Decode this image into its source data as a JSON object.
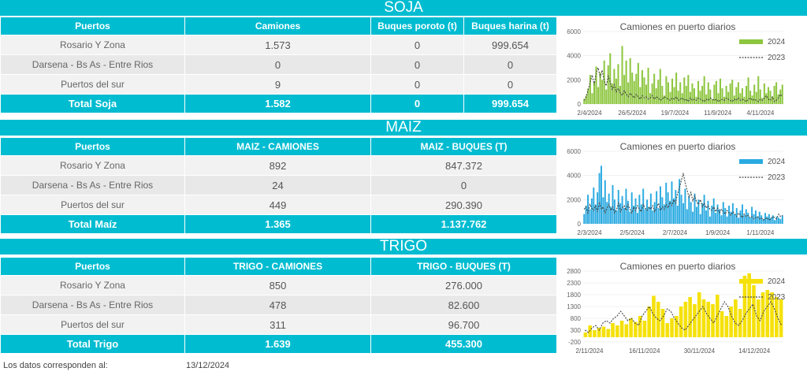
{
  "soja": {
    "title": "SOJA",
    "headers": [
      "Puertos",
      "Camiones",
      "Buques poroto (t)",
      "Buques harina (t)"
    ],
    "rows": [
      [
        "Rosario Y Zona",
        "1.573",
        "0",
        "999.654"
      ],
      [
        "Darsena - Bs As - Entre Rios",
        "0",
        "0",
        "0"
      ],
      [
        "Puertos del sur",
        "9",
        "0",
        "0"
      ]
    ],
    "total": [
      "Total Soja",
      "1.582",
      "0",
      "999.654"
    ]
  },
  "maiz": {
    "title": "MAIZ",
    "headers": [
      "Puertos",
      "MAIZ - CAMIONES",
      "MAIZ - BUQUES (T)"
    ],
    "rows": [
      [
        "Rosario Y Zona",
        "892",
        "847.372"
      ],
      [
        "Darsena - Bs As - Entre Rios",
        "24",
        "0"
      ],
      [
        "Puertos del sur",
        "449",
        "290.390"
      ]
    ],
    "total": [
      "Total Maíz",
      "1.365",
      "1.137.762"
    ]
  },
  "trigo": {
    "title": "TRIGO",
    "headers": [
      "Puertos",
      "TRIGO - CAMIONES",
      "TRIGO - BUQUES (T)"
    ],
    "rows": [
      [
        "Rosario Y Zona",
        "850",
        "276.000"
      ],
      [
        "Darsena - Bs As - Entre Rios",
        "478",
        "82.600"
      ],
      [
        "Puertos del sur",
        "311",
        "96.700"
      ]
    ],
    "total": [
      "Total Trigo",
      "1.639",
      "455.300"
    ]
  },
  "footer": {
    "label": "Los datos corresponden al:",
    "date": "13/12/2024"
  },
  "colors": {
    "band": "#00bcd1",
    "soja_bar": "#8dc63f",
    "maiz_bar": "#29aae1",
    "trigo_bar": "#f5e10a",
    "prev_line": "#444444"
  },
  "chart_data": [
    {
      "type": "bar",
      "title": "Camiones en puerto diarios",
      "series": [
        {
          "name": "2024",
          "color": "#8dc63f",
          "values": [
            420,
            700,
            1300,
            2400,
            900,
            1800,
            3100,
            1400,
            2600,
            2000,
            3600,
            1200,
            3200,
            4200,
            1700,
            2900,
            2100,
            3300,
            1500,
            4800,
            2400,
            3600,
            1800,
            3800,
            2600,
            1900,
            2500,
            3400,
            1400,
            2800,
            2200,
            1600,
            3000,
            900,
            1700,
            2500,
            1300,
            2000,
            2900,
            1500,
            700,
            2300,
            1800,
            1000,
            2100,
            1400,
            2600,
            1100,
            1800,
            900,
            2200,
            1500,
            2400,
            1000,
            1700,
            1300,
            600,
            1900,
            1100,
            1500,
            2300,
            800,
            1800,
            1200,
            400,
            1600,
            1900,
            900,
            2100,
            1300,
            600,
            1500,
            1000,
            1700,
            2000,
            700,
            1400,
            1800,
            900,
            1300,
            600,
            1500,
            2200,
            1100,
            700,
            1600,
            1000,
            2300,
            1200,
            500,
            1700,
            900,
            1400,
            1100,
            600,
            1500,
            1800,
            800,
            1200,
            1600
          ]
        },
        {
          "name": "2023",
          "color": "#444444",
          "values": [
            300,
            600,
            1200,
            1800,
            2400,
            1600,
            2600,
            3000,
            2200,
            2800,
            1900,
            1500,
            2300,
            1800,
            1200,
            1600,
            1000,
            1300,
            900,
            700,
            1100,
            800,
            600,
            900,
            700,
            500,
            800,
            600,
            400,
            700,
            500,
            600,
            400,
            500,
            700,
            400,
            600,
            500,
            300,
            400,
            600,
            500,
            400,
            300,
            500,
            400,
            600,
            300,
            400,
            500,
            300,
            400,
            200,
            500,
            300,
            400,
            300,
            500,
            400,
            300,
            200,
            400,
            300,
            500,
            400,
            300,
            400,
            200,
            300,
            400,
            300,
            500,
            400,
            300,
            200,
            400,
            300,
            500,
            300,
            400,
            300,
            200,
            400,
            500,
            300,
            400,
            300,
            200,
            400,
            300,
            500,
            700,
            400,
            300,
            600,
            200,
            300,
            500,
            800,
            600
          ]
        }
      ],
      "x_ticks": [
        "2/4/2024",
        "26/5/2024",
        "19/7/2024",
        "11/9/2024",
        "4/11/2024"
      ],
      "y_ticks": [
        "0",
        "2000",
        "4000",
        "6000"
      ],
      "ylim": [
        0,
        6000
      ]
    },
    {
      "type": "bar",
      "title": "Camiones en puerto diarios",
      "series": [
        {
          "name": "2024",
          "color": "#29aae1",
          "values": [
            800,
            1500,
            2400,
            1200,
            2100,
            3000,
            1600,
            2600,
            4200,
            4800,
            2200,
            3600,
            1800,
            2500,
            1400,
            3200,
            2000,
            1100,
            2800,
            1700,
            2300,
            1300,
            2900,
            1900,
            1000,
            2600,
            1500,
            2100,
            900,
            2400,
            1600,
            2900,
            1200,
            2000,
            1400,
            2500,
            1100,
            1800,
            2700,
            1300,
            3100,
            2200,
            1600,
            3400,
            2600,
            1900,
            3500,
            2100,
            2800,
            1500,
            3700,
            2400,
            1700,
            2900,
            1200,
            2300,
            1800,
            1000,
            2500,
            1400,
            2000,
            800,
            1700,
            2400,
            1100,
            1900,
            600,
            1500,
            2100,
            900,
            1600,
            1200,
            700,
            1800,
            1300,
            600,
            1500,
            1000,
            1700,
            800,
            1300,
            500,
            1100,
            1600,
            700,
            1200,
            900,
            500,
            1400,
            800,
            1100,
            600,
            1000,
            700,
            400,
            900,
            600,
            800,
            500,
            700,
            300,
            600,
            500,
            400,
            700
          ]
        },
        {
          "name": "2023",
          "color": "#444444",
          "values": [
            1200,
            1400,
            900,
            1600,
            1300,
            1100,
            1500,
            1000,
            1800,
            1200,
            1400,
            900,
            1300,
            1600,
            1100,
            1400,
            900,
            1200,
            1700,
            1000,
            1300,
            1500,
            1100,
            1600,
            1200,
            900,
            1400,
            1100,
            1500,
            1200,
            1000,
            1600,
            1300,
            1100,
            1400,
            1200,
            1500,
            1000,
            1300,
            1700,
            1100,
            1400,
            1200,
            1600,
            1300,
            1800,
            1500,
            2000,
            1700,
            2500,
            3000,
            3600,
            4200,
            3400,
            2800,
            2200,
            2600,
            1900,
            2300,
            1800,
            1600,
            2000,
            1400,
            1700,
            1300,
            1500,
            1200,
            1100,
            1400,
            1000,
            1300,
            900,
            1200,
            1000,
            800,
            1100,
            900,
            700,
            1000,
            800,
            600,
            900,
            700,
            500,
            800,
            600,
            700,
            500,
            600,
            400,
            500,
            600,
            400,
            500,
            300,
            400,
            500,
            300,
            400,
            600,
            500,
            400,
            800,
            600,
            700
          ]
        }
      ],
      "x_ticks": [
        "2/3/2024",
        "2/5/2024",
        "2/7/2024",
        "1/9/2024",
        "1/11/2024"
      ],
      "y_ticks": [
        "0",
        "2000",
        "4000",
        "6000"
      ],
      "ylim": [
        0,
        6000
      ]
    },
    {
      "type": "bar",
      "title": "Camiones en puerto diarios",
      "series": [
        {
          "name": "2024",
          "color": "#f5e10a",
          "values": [
            200,
            500,
            300,
            400,
            450,
            350,
            600,
            500,
            700,
            550,
            800,
            650,
            900,
            700,
            1300,
            1750,
            1500,
            1200,
            600,
            800,
            900,
            1300,
            1500,
            1700,
            1400,
            1900,
            1600,
            1500,
            1400,
            1800,
            1100,
            900,
            1300,
            1600,
            1200,
            2600,
            2700,
            2200,
            1600,
            1900,
            2000,
            1900,
            1700,
            1600
          ]
        },
        {
          "name": "2023",
          "color": "#444444",
          "values": [
            300,
            200,
            400,
            500,
            300,
            600,
            700,
            600,
            800,
            900,
            1100,
            900,
            700,
            800,
            600,
            500,
            900,
            1100,
            1300,
            1000,
            800,
            700,
            900,
            1200,
            1100,
            800,
            600,
            400,
            300,
            500,
            700,
            900,
            1100,
            1300,
            1000,
            800,
            600,
            900,
            1200,
            1500,
            1300,
            900,
            600,
            500,
            700,
            1000,
            1200,
            1400,
            900,
            700,
            1100,
            1300,
            1500,
            1200,
            800,
            500
          ]
        }
      ],
      "x_ticks": [
        "2/11/2024",
        "16/11/2024",
        "30/11/2024",
        "14/12/2024"
      ],
      "y_ticks": [
        "-200",
        "300",
        "800",
        "1300",
        "1800",
        "2300",
        "2800"
      ],
      "ylim": [
        -200,
        2800
      ]
    }
  ]
}
